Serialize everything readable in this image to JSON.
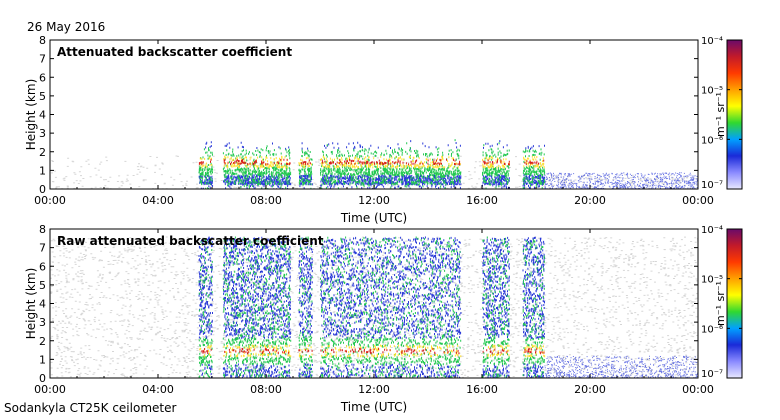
{
  "date": "26 May 2016",
  "station": "Sodankyla CT25K ceilometer",
  "colorbar": {
    "unit": "m⁻¹ sr⁻¹",
    "ticks": [
      "10⁻⁴",
      "10⁻⁵",
      "10⁻⁶",
      "10⁻⁷"
    ],
    "colors": [
      "#6a0a6a",
      "#c21a2a",
      "#ff3a00",
      "#ffa000",
      "#ffff00",
      "#30d830",
      "#00a0ff",
      "#1a2ad8",
      "#8a8aff",
      "#e8e8ff"
    ]
  },
  "colors": {
    "noise": "#d6d6d6",
    "weak": "#2a3ad8",
    "medium": "#22c850",
    "strong": "#ffe030",
    "peak": "#d8201a"
  },
  "chart_data": [
    {
      "type": "heatmap",
      "title": "Attenuated backscatter coefficient",
      "xlabel": "Time (UTC)",
      "ylabel": "Height (km)",
      "xlim": [
        0,
        24
      ],
      "ylim": [
        0,
        8
      ],
      "xticks": [
        "00:00",
        "04:00",
        "08:00",
        "12:00",
        "16:00",
        "20:00",
        "00:00"
      ],
      "yticks": [
        "0",
        "1",
        "2",
        "3",
        "4",
        "5",
        "6",
        "7",
        "8"
      ],
      "cloud_layer_km": 1.5,
      "cloud_periods_h": [
        [
          5.5,
          6.0
        ],
        [
          6.4,
          8.9
        ],
        [
          9.2,
          9.7
        ],
        [
          10.0,
          15.2
        ],
        [
          16.0,
          17.0
        ],
        [
          17.5,
          18.3
        ]
      ],
      "clear_sky_h": [
        [
          18.3,
          24.0
        ]
      ]
    },
    {
      "type": "heatmap",
      "title": "Raw attenuated backscatter coefficient",
      "xlabel": "Time (UTC)",
      "ylabel": "Height (km)",
      "xlim": [
        0,
        24
      ],
      "ylim": [
        0,
        8
      ],
      "xticks": [
        "00:00",
        "04:00",
        "08:00",
        "12:00",
        "16:00",
        "20:00",
        "00:00"
      ],
      "yticks": [
        "0",
        "1",
        "2",
        "3",
        "4",
        "5",
        "6",
        "7",
        "8"
      ],
      "cloud_layer_km": 1.5,
      "cloud_periods_h": [
        [
          5.5,
          6.0
        ],
        [
          6.4,
          8.9
        ],
        [
          9.2,
          9.7
        ],
        [
          10.0,
          15.2
        ],
        [
          16.0,
          17.0
        ],
        [
          17.5,
          18.3
        ]
      ],
      "clear_sky_h": [
        [
          18.3,
          24.0
        ]
      ]
    }
  ]
}
